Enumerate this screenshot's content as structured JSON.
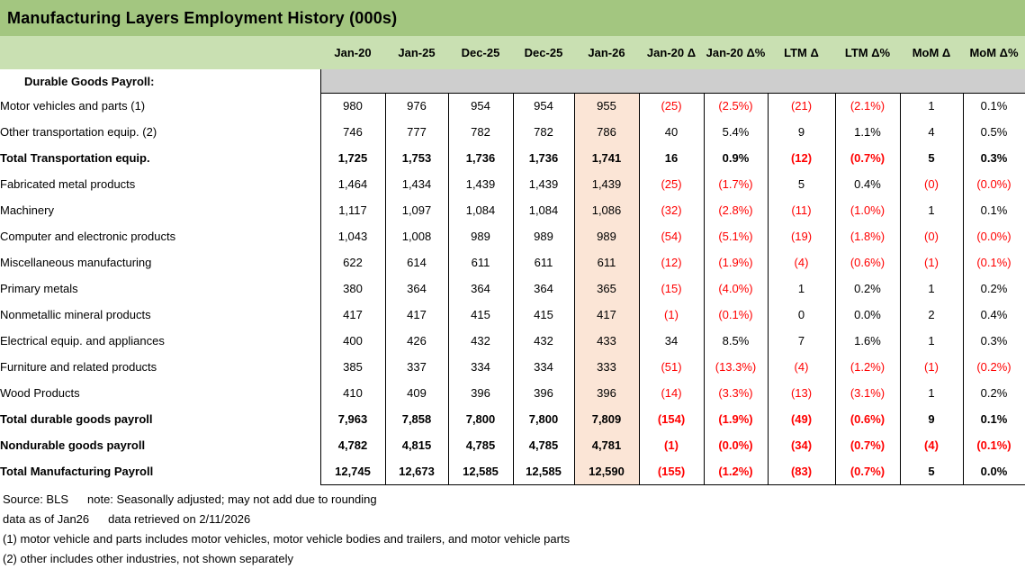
{
  "title": "Manufacturing Layers Employment History (000s)",
  "colors": {
    "title_bar_green": "#a3c680",
    "header_row_green": "#c9e0b2",
    "band_gray": "#cecece",
    "jan26_highlight": "#fbe5d6",
    "negative_red": "#ff0000",
    "border_black": "#000000"
  },
  "table": {
    "columns": [
      "Jan-20",
      "Jan-25",
      "Dec-25",
      "Dec-25",
      "Jan-26",
      "Jan-20 Δ",
      "Jan-20 Δ%",
      "LTM Δ",
      "LTM Δ%",
      "MoM Δ",
      "MoM Δ%"
    ],
    "highlight_column": "Jan-26",
    "section_header": "Durable Goods Payroll:",
    "rows": [
      {
        "label": "Motor vehicles and parts (1)",
        "indent": 4,
        "bold": false,
        "values": [
          "980",
          "976",
          "954",
          "954",
          "955",
          "(25)",
          "(2.5%)",
          "(21)",
          "(2.1%)",
          "1",
          "0.1%"
        ]
      },
      {
        "label": "Other transportation equip. (2)",
        "indent": 4,
        "bold": false,
        "values": [
          "746",
          "777",
          "782",
          "782",
          "786",
          "40",
          "5.4%",
          "9",
          "1.1%",
          "4",
          "0.5%"
        ]
      },
      {
        "label": "Total Transportation equip.",
        "indent": 3,
        "bold": true,
        "values": [
          "1,725",
          "1,753",
          "1,736",
          "1,736",
          "1,741",
          "16",
          "0.9%",
          "(12)",
          "(0.7%)",
          "5",
          "0.3%"
        ]
      },
      {
        "label": "Fabricated metal products",
        "indent": 4,
        "bold": false,
        "values": [
          "1,464",
          "1,434",
          "1,439",
          "1,439",
          "1,439",
          "(25)",
          "(1.7%)",
          "5",
          "0.4%",
          "(0)",
          "(0.0%)"
        ]
      },
      {
        "label": "Machinery",
        "indent": 4,
        "bold": false,
        "values": [
          "1,117",
          "1,097",
          "1,084",
          "1,084",
          "1,086",
          "(32)",
          "(2.8%)",
          "(11)",
          "(1.0%)",
          "1",
          "0.1%"
        ]
      },
      {
        "label": "Computer and electronic products",
        "indent": 4,
        "bold": false,
        "values": [
          "1,043",
          "1,008",
          "989",
          "989",
          "989",
          "(54)",
          "(5.1%)",
          "(19)",
          "(1.8%)",
          "(0)",
          "(0.0%)"
        ]
      },
      {
        "label": "Miscellaneous manufacturing",
        "indent": 4,
        "bold": false,
        "values": [
          "622",
          "614",
          "611",
          "611",
          "611",
          "(12)",
          "(1.9%)",
          "(4)",
          "(0.6%)",
          "(1)",
          "(0.1%)"
        ]
      },
      {
        "label": "Primary metals",
        "indent": 4,
        "bold": false,
        "values": [
          "380",
          "364",
          "364",
          "364",
          "365",
          "(15)",
          "(4.0%)",
          "1",
          "0.2%",
          "1",
          "0.2%"
        ]
      },
      {
        "label": "Nonmetallic mineral products",
        "indent": 4,
        "bold": false,
        "values": [
          "417",
          "417",
          "415",
          "415",
          "417",
          "(1)",
          "(0.1%)",
          "0",
          "0.0%",
          "2",
          "0.4%"
        ]
      },
      {
        "label": "Electrical equip. and appliances",
        "indent": 4,
        "bold": false,
        "values": [
          "400",
          "426",
          "432",
          "432",
          "433",
          "34",
          "8.5%",
          "7",
          "1.6%",
          "1",
          "0.3%"
        ]
      },
      {
        "label": "Furniture and related products",
        "indent": 4,
        "bold": false,
        "values": [
          "385",
          "337",
          "334",
          "334",
          "333",
          "(51)",
          "(13.3%)",
          "(4)",
          "(1.2%)",
          "(1)",
          "(0.2%)"
        ]
      },
      {
        "label": "Wood Products",
        "indent": 4,
        "bold": false,
        "values": [
          "410",
          "409",
          "396",
          "396",
          "396",
          "(14)",
          "(3.3%)",
          "(13)",
          "(3.1%)",
          "1",
          "0.2%"
        ]
      },
      {
        "label": "Total durable goods payroll",
        "indent": 2,
        "bold": true,
        "values": [
          "7,963",
          "7,858",
          "7,800",
          "7,800",
          "7,809",
          "(154)",
          "(1.9%)",
          "(49)",
          "(0.6%)",
          "9",
          "0.1%"
        ]
      },
      {
        "label": "Nondurable goods payroll",
        "indent": 2,
        "bold": true,
        "values": [
          "4,782",
          "4,815",
          "4,785",
          "4,785",
          "4,781",
          "(1)",
          "(0.0%)",
          "(34)",
          "(0.7%)",
          "(4)",
          "(0.1%)"
        ]
      },
      {
        "label": "Total Manufacturing Payroll",
        "indent": 1,
        "bold": true,
        "values": [
          "12,745",
          "12,673",
          "12,585",
          "12,585",
          "12,590",
          "(155)",
          "(1.2%)",
          "(83)",
          "(0.7%)",
          "5",
          "0.0%"
        ]
      }
    ]
  },
  "footer": {
    "source_label": "Source: BLS",
    "note_label": "note: Seasonally adjusted; may not add due to rounding",
    "data_as_of": "data as of Jan26",
    "data_retrieved": "data retrieved on 2/11/2026",
    "footnote1": "(1) motor vehicle and parts includes motor vehicles, motor vehicle bodies and trailers, and motor vehicle parts",
    "footnote2": "(2) other includes other industries, not shown separately"
  }
}
